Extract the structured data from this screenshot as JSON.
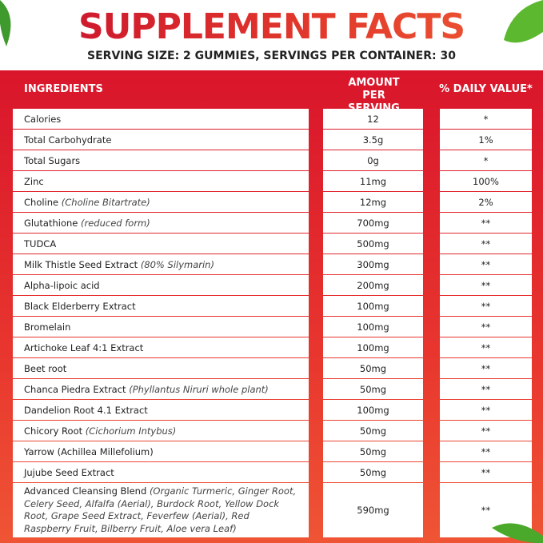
{
  "header": {
    "title": "SUPPLEMENT FACTS",
    "subtitle": "SERVING SIZE: 2 GUMMIES, SERVINGS PER CONTAINER: 30"
  },
  "table": {
    "columns": [
      "INGREDIENTS",
      "AMOUNT PER SERVING",
      "% DAILY VALUE*"
    ],
    "rows": [
      {
        "name": "Calories",
        "amount": "12",
        "daily_value": "*"
      },
      {
        "name": "Total Carbohydrate",
        "amount": "3.5g",
        "daily_value": "1%"
      },
      {
        "name": "Total Sugars",
        "amount": "0g",
        "daily_value": "*"
      },
      {
        "name": "Zinc",
        "amount": "11mg",
        "daily_value": "100%"
      },
      {
        "name": "Choline",
        "note": "(Choline Bitartrate)",
        "amount": "12mg",
        "daily_value": "2%"
      },
      {
        "name": "Glutathione",
        "note": "(reduced form)",
        "amount": "700mg",
        "daily_value": "**"
      },
      {
        "name": "TUDCA",
        "amount": "500mg",
        "daily_value": "**"
      },
      {
        "name": "Milk Thistle Seed Extract",
        "note": "(80% Silymarin)",
        "amount": "300mg",
        "daily_value": "**"
      },
      {
        "name": "Alpha-lipoic acid",
        "amount": "200mg",
        "daily_value": "**"
      },
      {
        "name": "Black Elderberry Extract",
        "amount": "100mg",
        "daily_value": "**"
      },
      {
        "name": "Bromelain",
        "amount": "100mg",
        "daily_value": "**"
      },
      {
        "name": "Artichoke Leaf 4:1 Extract",
        "amount": "100mg",
        "daily_value": "**"
      },
      {
        "name": "Beet root",
        "amount": "50mg",
        "daily_value": "**"
      },
      {
        "name": "Chanca Piedra Extract",
        "note": "(Phyllantus Niruri whole plant)",
        "amount": "50mg",
        "daily_value": "**"
      },
      {
        "name": "Dandelion Root 4.1 Extract",
        "amount": "100mg",
        "daily_value": "**"
      },
      {
        "name": "Chicory Root",
        "note": "(Cichorium Intybus)",
        "amount": "50mg",
        "daily_value": "**"
      },
      {
        "name": "Yarrow (Achillea Millefolium)",
        "amount": "50mg",
        "daily_value": "**"
      },
      {
        "name": "Jujube Seed Extract",
        "amount": "50mg",
        "daily_value": "**"
      },
      {
        "name": "Advanced Cleansing Blend",
        "note": "(Organic Turmeric, Ginger Root, Celery Seed, Alfalfa (Aerial), Burdock Root, Yellow Dock Root, Grape Seed Extract, Feverfew (Aerial), Red Raspberry Fruit, Bilberry Fruit, Aloe vera Leaf)",
        "amount": "590mg",
        "daily_value": "**"
      }
    ]
  }
}
